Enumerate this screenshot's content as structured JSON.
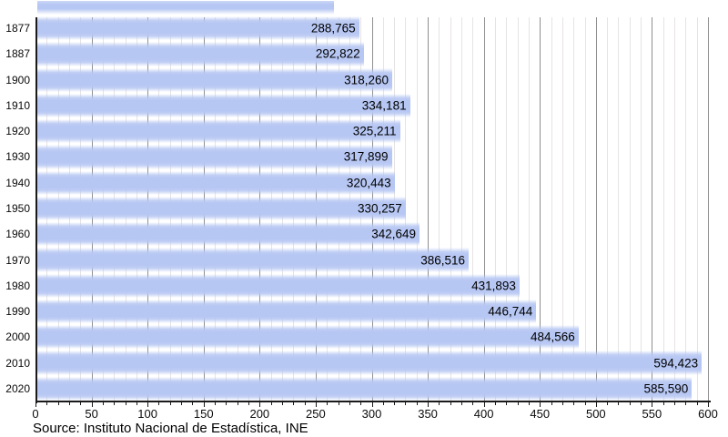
{
  "chart_data": {
    "type": "bar",
    "orientation": "horizontal",
    "title": "",
    "categories": [
      "1877",
      "1887",
      "1900",
      "1910",
      "1920",
      "1930",
      "1940",
      "1950",
      "1960",
      "1970",
      "1980",
      "1990",
      "2000",
      "2010",
      "2020"
    ],
    "values": [
      288765,
      292822,
      318260,
      334181,
      325211,
      317899,
      320443,
      330257,
      342649,
      386516,
      431893,
      446744,
      484566,
      594423,
      585590
    ],
    "value_labels": [
      "288,765",
      "292,822",
      "318,260",
      "334,181",
      "325,211",
      "317,899",
      "320,443",
      "330,257",
      "342,649",
      "386,516",
      "431,893",
      "446,744",
      "484,566",
      "594,423",
      "585,590"
    ],
    "x_axis": {
      "min": 0,
      "max": 600,
      "unit": "thousands",
      "major_step": 50,
      "minor_step": 10,
      "tick_labels": [
        "0",
        "50",
        "100",
        "150",
        "200",
        "250",
        "300",
        "350",
        "400",
        "450",
        "500",
        "550",
        "600"
      ]
    },
    "grid": "vertical minor every 10, major every 50",
    "legend": false,
    "source": "Source: Instituto Nacional de Estadística, INE",
    "colors": {
      "bar": "#b7c7f3",
      "minor_grid": "#e6e3e3",
      "major_grid": "#8f8f8f",
      "axis": "#1a1a1a",
      "label_text": "#000000"
    },
    "top_clipped_bar": {
      "visible": true,
      "approx_length_units": 265
    }
  }
}
